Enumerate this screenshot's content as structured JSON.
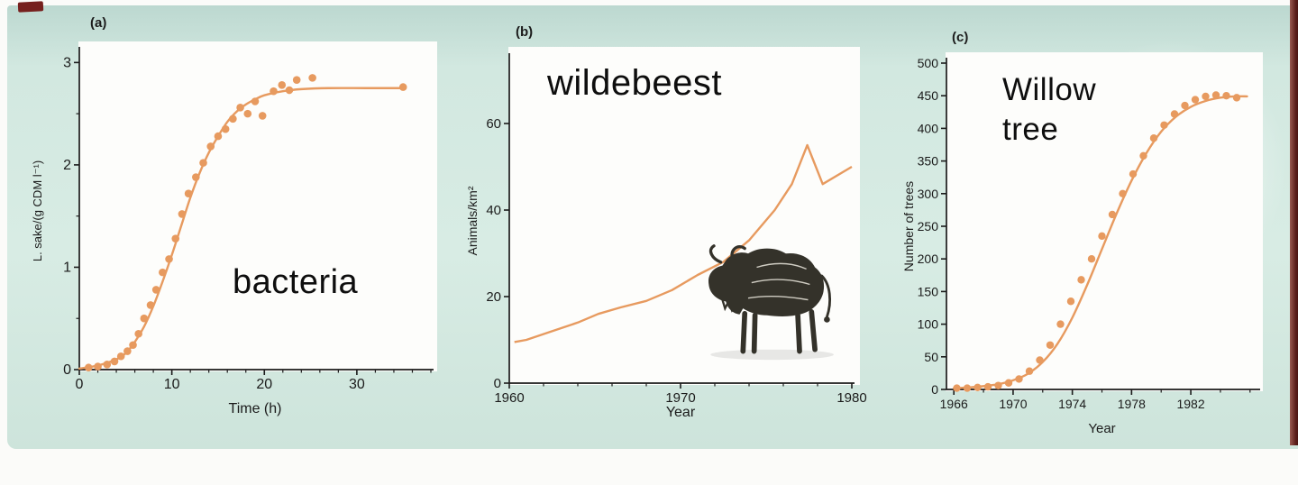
{
  "figure": {
    "background_color": "#d5eae2",
    "accent_color": "#e79a5f",
    "panel_letters": {
      "a": "(a)",
      "b": "(b)",
      "c": "(c)"
    }
  },
  "chart_data": [
    {
      "type": "scatter",
      "panel_label": "(a)",
      "annotation": "bacteria",
      "xlabel": "Time (h)",
      "ylabel": "L. sake/(g CDM l⁻¹)",
      "xlim": [
        0,
        38
      ],
      "ylim": [
        0,
        3.1
      ],
      "xticks": [
        0,
        10,
        20,
        30
      ],
      "yticks": [
        0,
        1,
        2,
        3
      ],
      "legend": "none",
      "grid": false,
      "color": "#e79a5f",
      "dots": [
        [
          1,
          0.02
        ],
        [
          2,
          0.03
        ],
        [
          3,
          0.05
        ],
        [
          3.8,
          0.08
        ],
        [
          4.5,
          0.13
        ],
        [
          5.2,
          0.18
        ],
        [
          5.8,
          0.24
        ],
        [
          6.4,
          0.35
        ],
        [
          7,
          0.5
        ],
        [
          7.7,
          0.63
        ],
        [
          8.3,
          0.78
        ],
        [
          9,
          0.95
        ],
        [
          9.7,
          1.08
        ],
        [
          10.4,
          1.28
        ],
        [
          11.1,
          1.52
        ],
        [
          11.8,
          1.72
        ],
        [
          12.6,
          1.88
        ],
        [
          13.4,
          2.02
        ],
        [
          14.2,
          2.18
        ],
        [
          15,
          2.28
        ],
        [
          15.8,
          2.35
        ],
        [
          16.6,
          2.45
        ],
        [
          17.4,
          2.56
        ],
        [
          18.2,
          2.5
        ],
        [
          19,
          2.62
        ],
        [
          19.8,
          2.48
        ],
        [
          21,
          2.72
        ],
        [
          21.9,
          2.78
        ],
        [
          22.7,
          2.73
        ],
        [
          23.5,
          2.83
        ],
        [
          25.2,
          2.85
        ],
        [
          35,
          2.76
        ]
      ],
      "curve": [
        [
          0,
          0.01
        ],
        [
          2,
          0.04
        ],
        [
          4,
          0.1
        ],
        [
          5,
          0.16
        ],
        [
          6,
          0.27
        ],
        [
          7,
          0.42
        ],
        [
          8,
          0.62
        ],
        [
          9,
          0.86
        ],
        [
          10,
          1.12
        ],
        [
          11,
          1.4
        ],
        [
          12,
          1.68
        ],
        [
          13,
          1.92
        ],
        [
          14,
          2.12
        ],
        [
          15,
          2.28
        ],
        [
          16,
          2.42
        ],
        [
          17,
          2.52
        ],
        [
          18,
          2.59
        ],
        [
          19,
          2.64
        ],
        [
          20,
          2.68
        ],
        [
          22,
          2.72
        ],
        [
          24,
          2.74
        ],
        [
          27,
          2.75
        ],
        [
          31,
          2.75
        ],
        [
          35,
          2.75
        ]
      ]
    },
    {
      "type": "line",
      "panel_label": "(b)",
      "annotation": "wildebeest",
      "xlabel": "Year",
      "ylabel": "Animals/km²",
      "xlim": [
        1960,
        1980
      ],
      "ylim": [
        0,
        75
      ],
      "xticks": [
        1960,
        1970,
        1980
      ],
      "yticks": [
        0,
        20,
        40,
        60
      ],
      "legend": "none",
      "grid": false,
      "color": "#e79a5f",
      "line": [
        [
          1960.3,
          9.5
        ],
        [
          1961,
          10
        ],
        [
          1962.5,
          12
        ],
        [
          1964,
          14
        ],
        [
          1965.2,
          16
        ],
        [
          1966.5,
          17.5
        ],
        [
          1968,
          19
        ],
        [
          1969.5,
          21.5
        ],
        [
          1971,
          25
        ],
        [
          1972.5,
          28
        ],
        [
          1974,
          33
        ],
        [
          1975.5,
          40
        ],
        [
          1976.5,
          46
        ],
        [
          1977.4,
          55
        ],
        [
          1978.3,
          46
        ],
        [
          1980,
          50
        ]
      ]
    },
    {
      "type": "scatter",
      "panel_label": "(c)",
      "annotation": "Willow\ntree",
      "xlabel": "Year",
      "ylabel": "Number of trees",
      "xlim": [
        1965.5,
        1986.5
      ],
      "ylim": [
        0,
        500
      ],
      "xticks": [
        1966,
        1970,
        1974,
        1978,
        1982
      ],
      "yticks": [
        0,
        50,
        100,
        150,
        200,
        250,
        300,
        350,
        400,
        450,
        500
      ],
      "legend": "none",
      "grid": false,
      "color": "#e79a5f",
      "dots": [
        [
          1966.2,
          2
        ],
        [
          1966.9,
          2
        ],
        [
          1967.6,
          3
        ],
        [
          1968.3,
          4
        ],
        [
          1969,
          6
        ],
        [
          1969.7,
          10
        ],
        [
          1970.4,
          16
        ],
        [
          1971.1,
          28
        ],
        [
          1971.8,
          45
        ],
        [
          1972.5,
          68
        ],
        [
          1973.2,
          100
        ],
        [
          1973.9,
          135
        ],
        [
          1974.6,
          168
        ],
        [
          1975.3,
          200
        ],
        [
          1976,
          235
        ],
        [
          1976.7,
          268
        ],
        [
          1977.4,
          300
        ],
        [
          1978.1,
          330
        ],
        [
          1978.8,
          358
        ],
        [
          1979.5,
          385
        ],
        [
          1980.2,
          405
        ],
        [
          1980.9,
          422
        ],
        [
          1981.6,
          435
        ],
        [
          1982.3,
          444
        ],
        [
          1983,
          449
        ],
        [
          1983.7,
          451
        ],
        [
          1984.4,
          450
        ],
        [
          1985.1,
          447
        ]
      ],
      "curve": [
        [
          1966,
          2
        ],
        [
          1967,
          3
        ],
        [
          1968,
          5
        ],
        [
          1969,
          8
        ],
        [
          1970,
          14
        ],
        [
          1971,
          24
        ],
        [
          1972,
          42
        ],
        [
          1973,
          70
        ],
        [
          1974,
          110
        ],
        [
          1975,
          160
        ],
        [
          1976,
          215
        ],
        [
          1977,
          270
        ],
        [
          1978,
          320
        ],
        [
          1979,
          362
        ],
        [
          1980,
          395
        ],
        [
          1981,
          418
        ],
        [
          1982,
          433
        ],
        [
          1983,
          442
        ],
        [
          1984,
          447
        ],
        [
          1985,
          449
        ],
        [
          1985.8,
          449
        ]
      ]
    }
  ]
}
